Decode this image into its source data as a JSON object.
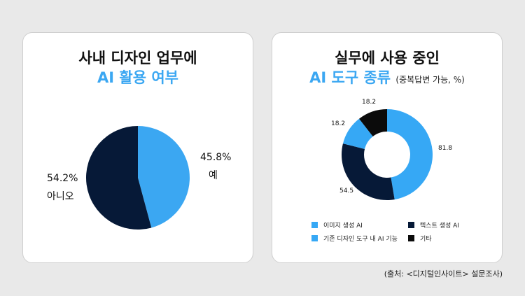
{
  "left_card": {
    "title_line1": "사내 디자인 업무에",
    "title_line2": "AI 활용 여부"
  },
  "right_card": {
    "title_line1": "실무에 사용 중인",
    "title_line2": "AI 도구 종류",
    "title_note": "(중복답변 가능, %)"
  },
  "source": "(출처: <디지털인사이트> 설문조사)",
  "colors": {
    "blue": "#3ba7f2",
    "navy": "#061937",
    "light_blue": "#36a8f5",
    "black": "#0b0b0b"
  },
  "chart_data": [
    {
      "type": "pie",
      "title": "사내 디자인 업무에 AI 활용 여부",
      "categories": [
        "예",
        "아니오"
      ],
      "values": [
        45.8,
        54.2
      ],
      "value_labels": [
        "45.8%",
        "54.2%"
      ],
      "colors": [
        "#3ba7f2",
        "#061937"
      ],
      "start": "12 o'clock, clockwise"
    },
    {
      "type": "pie",
      "donut": true,
      "title": "실무에 사용 중인 AI 도구 종류",
      "subtitle": "(중복답변 가능, %)",
      "categories": [
        "이미지 생성 AI",
        "텍스트 생성 AI",
        "기존 디자인 도구 내 AI 기능",
        "기타"
      ],
      "values": [
        81.8,
        54.5,
        18.2,
        18.2
      ],
      "value_labels": [
        "81.8",
        "54.5",
        "18.2",
        "18.2"
      ],
      "colors": [
        "#36a8f5",
        "#061937",
        "#36a8f5",
        "#0b0b0b"
      ],
      "legend": "bottom",
      "start": "12 o'clock, clockwise"
    }
  ]
}
